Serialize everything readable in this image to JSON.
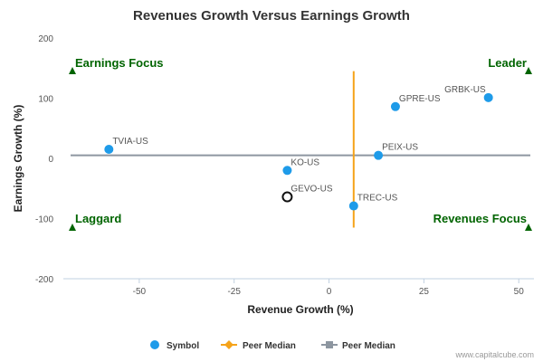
{
  "chart_data": {
    "type": "scatter",
    "title": "Revenues Growth Versus Earnings Growth",
    "xlabel": "Revenue Growth (%)",
    "ylabel": "Earnings Growth (%)",
    "xlim": [
      -70,
      54
    ],
    "ylim": [
      -200,
      200
    ],
    "xticks": [
      -50,
      -25,
      0,
      25,
      50
    ],
    "yticks": [
      -200,
      -100,
      0,
      100,
      200
    ],
    "grid": false,
    "series": [
      {
        "name": "Symbol",
        "color": "#1e9be9",
        "points": [
          {
            "label": "TVIA-US",
            "x": -58.0,
            "y": 15
          },
          {
            "label": "KO-US",
            "x": -11.0,
            "y": -20
          },
          {
            "label": "TREC-US",
            "x": 6.5,
            "y": -79
          },
          {
            "label": "PEIX-US",
            "x": 13.0,
            "y": 5
          },
          {
            "label": "GPRE-US",
            "x": 17.5,
            "y": 86
          },
          {
            "label": "GRBK-US",
            "x": 42.0,
            "y": 101
          }
        ]
      }
    ],
    "highlight_point": {
      "label": "GEVO-US",
      "x": -11.0,
      "y": -64
    },
    "peer_median_revenue": {
      "name": "Peer Median",
      "x": 6.5,
      "y_range": [
        -115,
        145
      ],
      "color": "#f5a31a"
    },
    "peer_median_earnings": {
      "name": "Peer Median",
      "y": 5,
      "color": "#8d96a0"
    },
    "quadrants": [
      {
        "label": "Earnings Focus",
        "corner": "top-left"
      },
      {
        "label": "Leader",
        "corner": "top-right"
      },
      {
        "label": "Laggard",
        "corner": "bottom-left"
      },
      {
        "label": "Revenues Focus",
        "corner": "bottom-right"
      }
    ],
    "quadrant_marker_color": "#006400",
    "legend": {
      "placement": "bottom",
      "items": [
        {
          "label": "Symbol",
          "marker": "circle",
          "color": "#1e9be9"
        },
        {
          "label": "Peer Median",
          "marker": "line-diamond",
          "color": "#f5a31a"
        },
        {
          "label": "Peer Median",
          "marker": "line-square",
          "color": "#8d96a0"
        }
      ]
    }
  },
  "credit": "www.capitalcube.com"
}
